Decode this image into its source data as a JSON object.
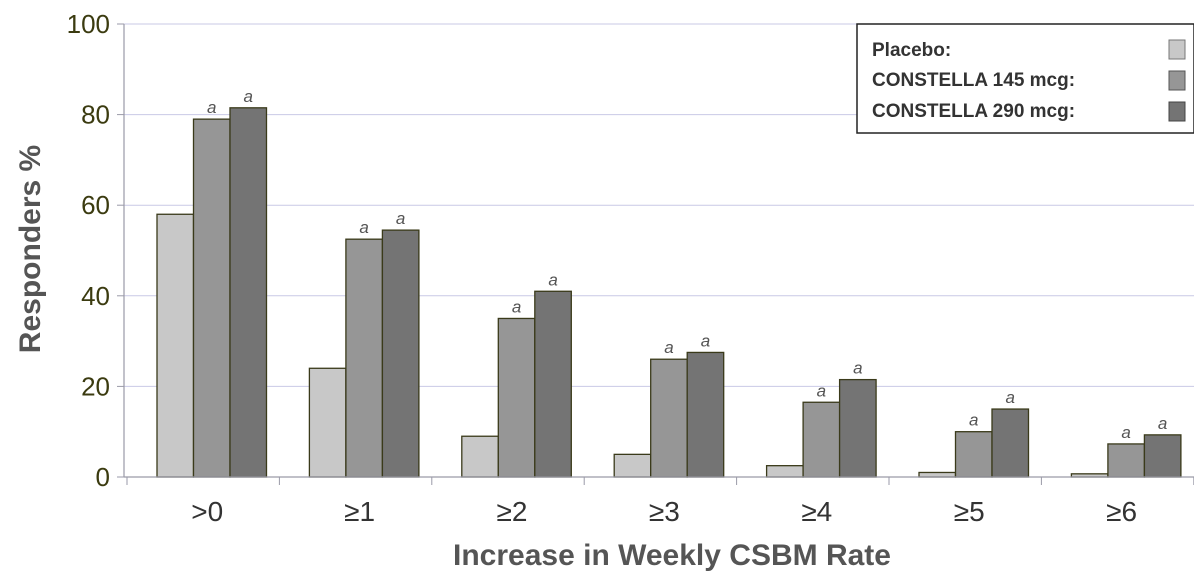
{
  "chart_data": {
    "type": "bar",
    "ylabel": "Responders %",
    "xlabel": "Increase in Weekly CSBM Rate",
    "categories": [
      ">0",
      "≥1",
      "≥2",
      "≥3",
      "≥4",
      "≥5",
      "≥6"
    ],
    "ylim": [
      0,
      100
    ],
    "yticks": [
      "0",
      "20",
      "40",
      "60",
      "80",
      "100"
    ],
    "grid": "horizontal",
    "legend_position": "top-right",
    "significance_marker": "a",
    "series": [
      {
        "name": "Placebo:",
        "color": "#c8c8c8",
        "values": [
          58,
          24,
          9,
          5,
          2.5,
          1,
          0.7
        ],
        "significant": [
          false,
          false,
          false,
          false,
          false,
          false,
          false
        ]
      },
      {
        "name": "CONSTELLA 145 mcg:",
        "color": "#969696",
        "values": [
          79,
          52.5,
          35,
          26,
          16.5,
          10,
          7.3
        ],
        "significant": [
          true,
          true,
          true,
          true,
          true,
          true,
          true
        ]
      },
      {
        "name": "CONSTELLA 290 mcg:",
        "color": "#747474",
        "values": [
          81.5,
          54.5,
          41,
          27.5,
          21.5,
          15,
          9.3
        ],
        "significant": [
          true,
          true,
          true,
          true,
          true,
          true,
          true
        ]
      }
    ]
  }
}
